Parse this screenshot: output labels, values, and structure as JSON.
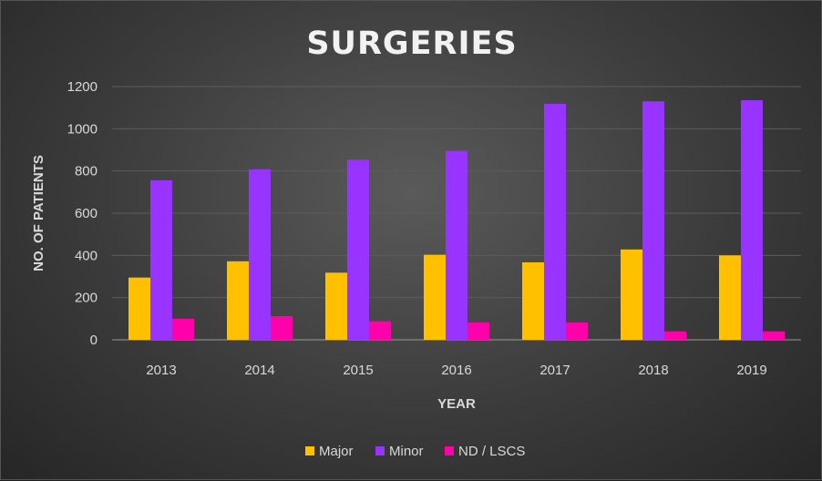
{
  "chart_data": {
    "type": "bar",
    "title": "SURGERIES",
    "xlabel": "YEAR",
    "ylabel": "NO. OF PATIENTS",
    "ylim": [
      0,
      1200
    ],
    "yticks": [
      0,
      200,
      400,
      600,
      800,
      1000,
      1200
    ],
    "grid": true,
    "legend_position": "bottom",
    "categories": [
      "2013",
      "2014",
      "2015",
      "2016",
      "2017",
      "2018",
      "2019"
    ],
    "series": [
      {
        "name": "Major",
        "color": "#ffc000",
        "values": [
          295,
          372,
          318,
          403,
          367,
          428,
          400
        ]
      },
      {
        "name": "Minor",
        "color": "#9933ff",
        "values": [
          756,
          808,
          853,
          895,
          1118,
          1130,
          1135
        ]
      },
      {
        "name": "ND / LSCS",
        "color": "#ff00aa",
        "values": [
          100,
          112,
          88,
          82,
          82,
          40,
          40
        ]
      }
    ]
  }
}
